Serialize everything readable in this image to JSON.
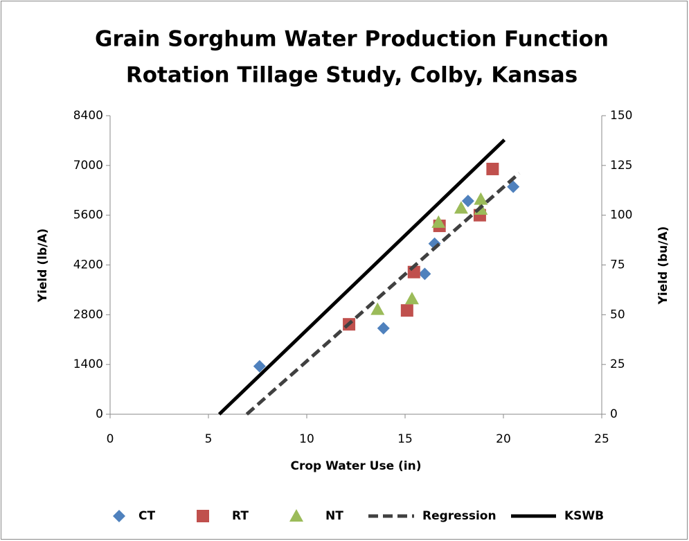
{
  "chart_data": {
    "type": "scatter",
    "title": [
      "Grain Sorghum Water Production Function",
      "Rotation Tillage Study, Colby, Kansas"
    ],
    "x_label": "Crop Water Use (in)",
    "y_label": "Yield (lb/A)",
    "y2_label": "Yield (bu/A)",
    "xlim": [
      0,
      25
    ],
    "xticks": [
      0,
      5,
      10,
      15,
      20,
      25
    ],
    "ylim": [
      0,
      8400
    ],
    "yticks": [
      0,
      1400,
      2800,
      4200,
      5600,
      7000,
      8400
    ],
    "y2lim": [
      0,
      150
    ],
    "y2ticks": [
      0,
      25,
      50,
      75,
      100,
      125,
      150
    ],
    "legend": "bottom",
    "series": [
      {
        "name": "CT",
        "color": "#4f81bd",
        "marker": "diamond",
        "x": [
          7.6,
          13.9,
          16.0,
          16.5,
          18.2,
          20.5
        ],
        "values": [
          1350,
          2420,
          3950,
          4800,
          6000,
          6400
        ]
      },
      {
        "name": "RT",
        "color": "#c0504d",
        "marker": "square",
        "x": [
          12.15,
          15.1,
          15.45,
          16.75,
          18.8,
          19.45
        ],
        "values": [
          2530,
          2920,
          4000,
          5300,
          5600,
          6900
        ]
      },
      {
        "name": "NT",
        "color": "#9bbb59",
        "marker": "triangle",
        "x": [
          13.6,
          15.35,
          16.7,
          17.85,
          18.85,
          18.85
        ],
        "values": [
          2950,
          3250,
          5400,
          5800,
          6050,
          5770
        ]
      },
      {
        "name": "Regression",
        "color": "#404040",
        "line_style": "dashed",
        "x": [
          6.95,
          20.8
        ],
        "values": [
          0,
          6780
        ]
      },
      {
        "name": "KSWB",
        "color": "#000000",
        "line_style": "solid",
        "x": [
          5.55,
          20.05
        ],
        "values": [
          0,
          7720
        ]
      }
    ]
  }
}
